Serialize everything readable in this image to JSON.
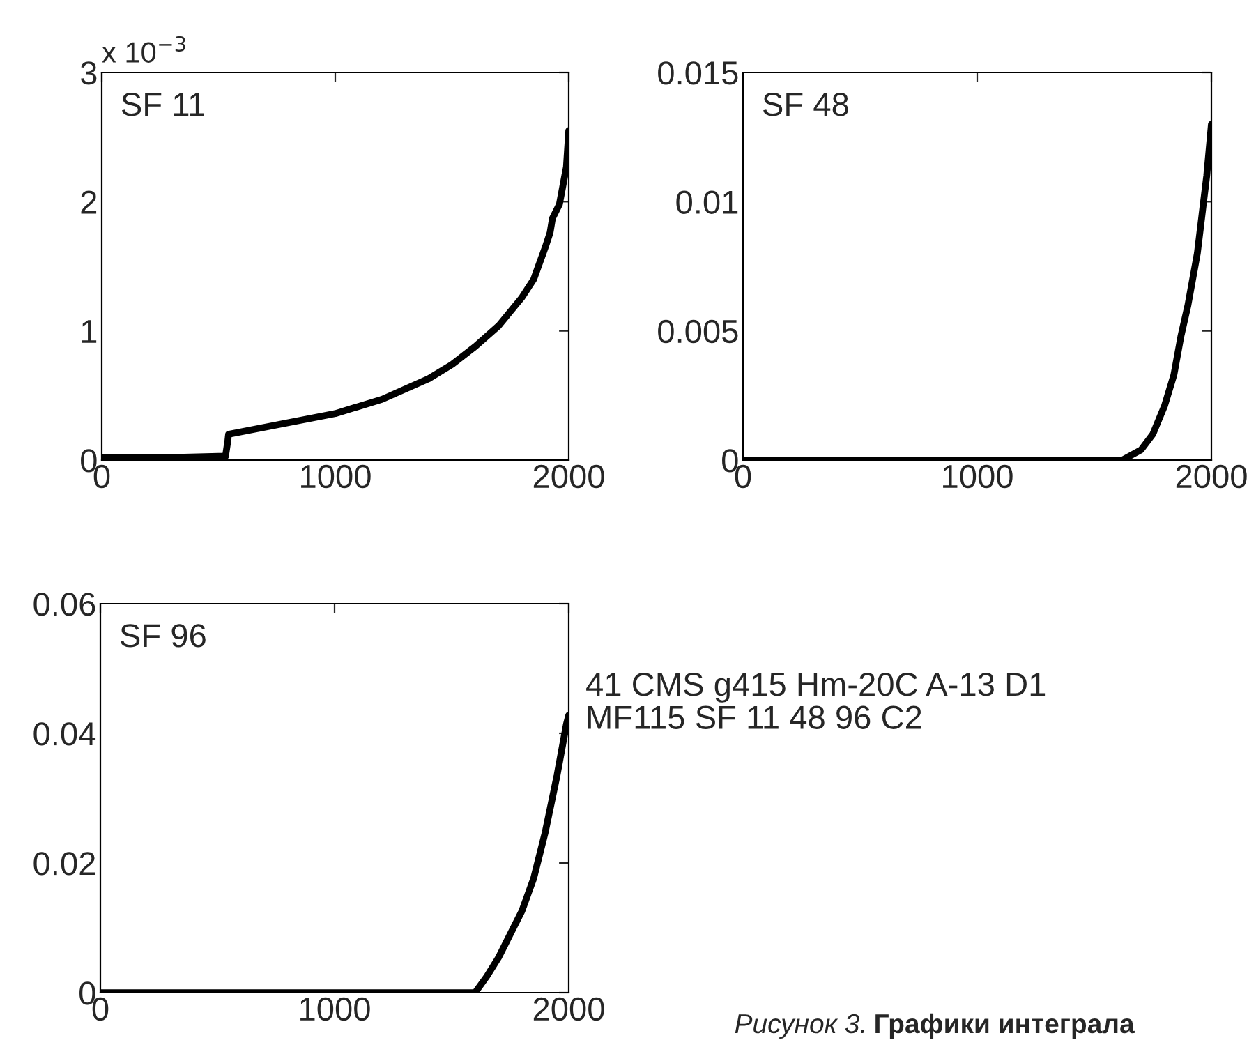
{
  "chart_data": [
    {
      "type": "line",
      "annotations": [
        "SF 11",
        "x 10$^{−3}$"
      ],
      "xlim": [
        0,
        2000
      ],
      "xticks": [
        0,
        1000,
        2000
      ],
      "ylim": [
        0,
        3
      ],
      "yticks": [
        0,
        1,
        2,
        3
      ],
      "series": [
        {
          "color": "#000000",
          "x": [
            0,
            300,
            530,
            540,
            543,
            800,
            1000,
            1200,
            1400,
            1500,
            1600,
            1700,
            1800,
            1850,
            1900,
            1920,
            1930,
            1960,
            1990,
            2000
          ],
          "values": [
            0.02,
            0.02,
            0.03,
            0.15,
            0.2,
            0.29,
            0.36,
            0.47,
            0.63,
            0.74,
            0.88,
            1.04,
            1.26,
            1.4,
            1.65,
            1.76,
            1.87,
            1.98,
            2.27,
            2.55
          ]
        }
      ]
    },
    {
      "type": "line",
      "annotations": [
        "SF 48"
      ],
      "xlim": [
        0,
        2000
      ],
      "xticks": [
        0,
        1000,
        2000
      ],
      "ylim": [
        0,
        0.015
      ],
      "yticks": [
        0,
        0.005,
        0.01,
        0.015
      ],
      "series": [
        {
          "color": "#000000",
          "x": [
            0,
            1620,
            1700,
            1750,
            1800,
            1840,
            1870,
            1900,
            1940,
            1960,
            1980,
            2000
          ],
          "values": [
            0,
            0,
            0.0004,
            0.001,
            0.0021,
            0.0033,
            0.0048,
            0.006,
            0.008,
            0.0095,
            0.011,
            0.013
          ]
        }
      ]
    },
    {
      "type": "line",
      "annotations": [
        "SF 96"
      ],
      "xlim": [
        0,
        2000
      ],
      "xticks": [
        0,
        1000,
        2000
      ],
      "ylim": [
        0,
        0.06
      ],
      "yticks": [
        0,
        0.02,
        0.04,
        0.06
      ],
      "series": [
        {
          "color": "#000000",
          "x": [
            0,
            1600,
            1650,
            1700,
            1750,
            1800,
            1850,
            1900,
            1950,
            1990,
            2000
          ],
          "values": [
            0,
            0,
            0.0025,
            0.0054,
            0.009,
            0.0126,
            0.0176,
            0.0248,
            0.0335,
            0.0414,
            0.0428
          ]
        }
      ]
    },
    {
      "type": "other",
      "annotations": [
        "41 CMS g415 Hm-20C A-13 D1\nMF115 SF 11 48 96 C2",
        "Рисунок 3.",
        "Графики интеграла"
      ]
    }
  ]
}
